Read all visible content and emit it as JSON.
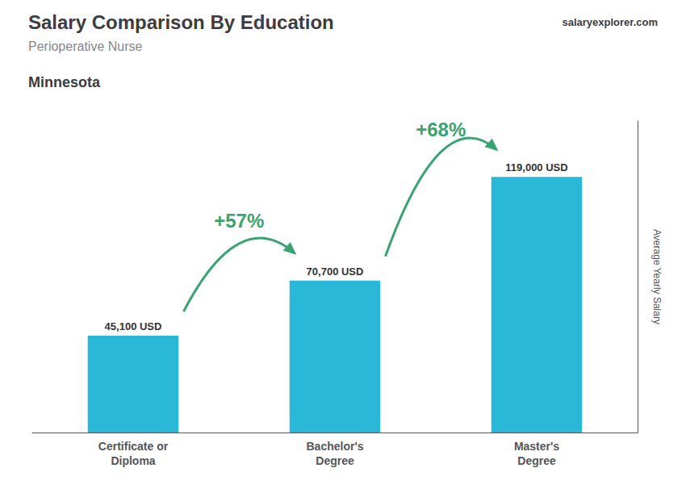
{
  "chart_data": {
    "type": "bar",
    "title": "Salary Comparison By Education",
    "subtitle": "Perioperative Nurse",
    "location": "Minnesota",
    "watermark": "salaryexplorer.com",
    "ylabel": "Average Yearly Salary",
    "categories": [
      "Certificate or\nDiploma",
      "Bachelor's\nDegree",
      "Master's\nDegree"
    ],
    "values": [
      45100,
      70700,
      119000
    ],
    "value_labels": [
      "45,100 USD",
      "70,700 USD",
      "119,000 USD"
    ],
    "data_labels": true,
    "color": "#29b8d8",
    "ylim": [
      0,
      145000
    ],
    "tick_labels": "x",
    "grid": false,
    "annotations": [
      "+57%",
      "+68%"
    ]
  }
}
